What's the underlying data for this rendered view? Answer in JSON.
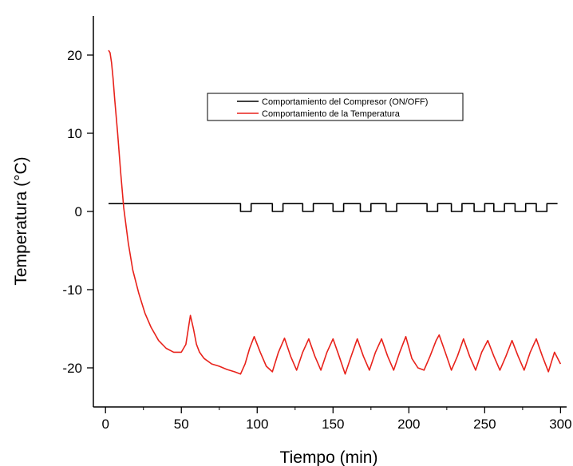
{
  "chart_data": {
    "type": "line",
    "title": "",
    "xlabel": "Tiempo (min)",
    "ylabel": "Temperatura (°C)",
    "xlim": [
      -8,
      304
    ],
    "ylim": [
      -25,
      25
    ],
    "x_ticks": [
      0,
      50,
      100,
      150,
      200,
      250,
      300
    ],
    "x_tick_labels": [
      "0",
      "50",
      "100",
      "150",
      "200",
      "250",
      "300"
    ],
    "y_ticks": [
      -20,
      -10,
      0,
      10,
      20
    ],
    "y_tick_labels": [
      "-20",
      "-10",
      "0",
      "10",
      "20"
    ],
    "grid": false,
    "legend_position": "top-center",
    "series": [
      {
        "name": "Comportamiento del Compresor (ON/OFF)",
        "color": "#000000",
        "x": [
          2,
          89,
          89,
          96,
          96,
          110,
          110,
          117,
          117,
          130,
          130,
          137,
          137,
          150,
          150,
          157,
          157,
          168,
          168,
          175,
          175,
          185,
          185,
          192,
          192,
          212,
          212,
          219,
          219,
          228,
          228,
          235,
          235,
          243,
          243,
          250,
          250,
          256,
          256,
          263,
          263,
          270,
          270,
          277,
          277,
          284,
          284,
          291,
          291,
          298
        ],
        "y": [
          1,
          1,
          0,
          0,
          1,
          1,
          0,
          0,
          1,
          1,
          0,
          0,
          1,
          1,
          0,
          0,
          1,
          1,
          0,
          0,
          1,
          1,
          0,
          0,
          1,
          1,
          0,
          0,
          1,
          1,
          0,
          0,
          1,
          1,
          0,
          0,
          1,
          1,
          0,
          0,
          1,
          1,
          0,
          0,
          1,
          1,
          0,
          0,
          1,
          1
        ]
      },
      {
        "name": "Comportamiento de la Temperatura",
        "color": "#e8221b",
        "x": [
          2,
          3,
          4,
          5,
          6,
          8,
          10,
          12,
          15,
          18,
          22,
          26,
          30,
          35,
          40,
          45,
          50,
          53,
          55,
          56,
          58,
          60,
          62,
          65,
          70,
          75,
          80,
          85,
          89,
          92,
          95,
          98,
          102,
          106,
          110,
          114,
          118,
          122,
          126,
          130,
          134,
          138,
          142,
          146,
          150,
          154,
          158,
          162,
          166,
          170,
          174,
          178,
          182,
          186,
          190,
          194,
          198,
          202,
          206,
          210,
          214,
          218,
          220,
          224,
          228,
          232,
          236,
          240,
          244,
          248,
          252,
          256,
          260,
          264,
          268,
          272,
          276,
          280,
          284,
          288,
          292,
          296,
          300
        ],
        "y": [
          20.6,
          20.3,
          19.0,
          17.0,
          14.5,
          10.0,
          5.0,
          0.5,
          -4.0,
          -7.5,
          -10.5,
          -13.0,
          -14.8,
          -16.5,
          -17.5,
          -18.0,
          -18.0,
          -17.0,
          -14.5,
          -13.3,
          -15.0,
          -17.0,
          -18.0,
          -18.8,
          -19.5,
          -19.8,
          -20.2,
          -20.5,
          -20.8,
          -19.5,
          -17.5,
          -16.0,
          -18.0,
          -19.8,
          -20.5,
          -18.0,
          -16.2,
          -18.5,
          -20.3,
          -18.0,
          -16.3,
          -18.5,
          -20.3,
          -18.0,
          -16.3,
          -18.5,
          -20.8,
          -18.5,
          -16.3,
          -18.5,
          -20.3,
          -18.0,
          -16.3,
          -18.5,
          -20.3,
          -18.0,
          -16.0,
          -18.8,
          -20.0,
          -20.3,
          -18.5,
          -16.5,
          -15.8,
          -18.0,
          -20.3,
          -18.5,
          -16.3,
          -18.5,
          -20.3,
          -18.0,
          -16.5,
          -18.5,
          -20.3,
          -18.5,
          -16.5,
          -18.5,
          -20.3,
          -18.0,
          -16.3,
          -18.5,
          -20.5,
          -18.0,
          -19.5
        ]
      }
    ]
  }
}
